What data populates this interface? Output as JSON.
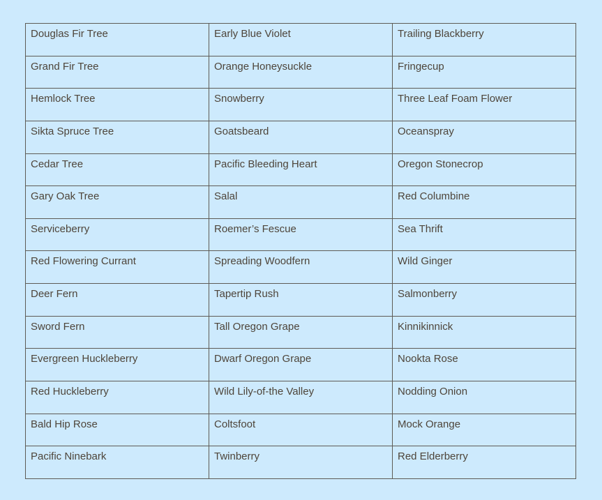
{
  "page": {
    "background_color": "#cdeafd"
  },
  "table": {
    "border_color": "#5e5b55",
    "text_color": "#4e453a",
    "cell_background": "#cdeafd",
    "columns": 3,
    "rows": [
      [
        "Douglas Fir Tree",
        "Early Blue Violet",
        "Trailing Blackberry"
      ],
      [
        "Grand Fir Tree",
        "Orange Honeysuckle",
        "Fringecup"
      ],
      [
        "Hemlock Tree",
        "Snowberry",
        "Three Leaf Foam Flower"
      ],
      [
        "Sikta Spruce Tree",
        "Goatsbeard",
        "Oceanspray"
      ],
      [
        "Cedar Tree",
        "Pacific Bleeding Heart",
        "Oregon Stonecrop"
      ],
      [
        "Gary Oak Tree",
        "Salal",
        "Red Columbine"
      ],
      [
        "Serviceberry",
        "Roemer’s Fescue",
        "Sea Thrift"
      ],
      [
        "Red Flowering Currant",
        "Spreading Woodfern",
        "Wild Ginger"
      ],
      [
        "Deer Fern",
        "Tapertip Rush",
        "Salmonberry"
      ],
      [
        "Sword Fern",
        "Tall Oregon Grape",
        "Kinnikinnick"
      ],
      [
        "Evergreen Huckleberry",
        "Dwarf Oregon Grape",
        "Nookta Rose"
      ],
      [
        "Red Huckleberry",
        "Wild Lily-of-the Valley",
        "Nodding Onion"
      ],
      [
        "Bald Hip Rose",
        "Coltsfoot",
        "Mock Orange"
      ],
      [
        "Pacific Ninebark",
        "Twinberry",
        "Red Elderberry"
      ]
    ]
  }
}
